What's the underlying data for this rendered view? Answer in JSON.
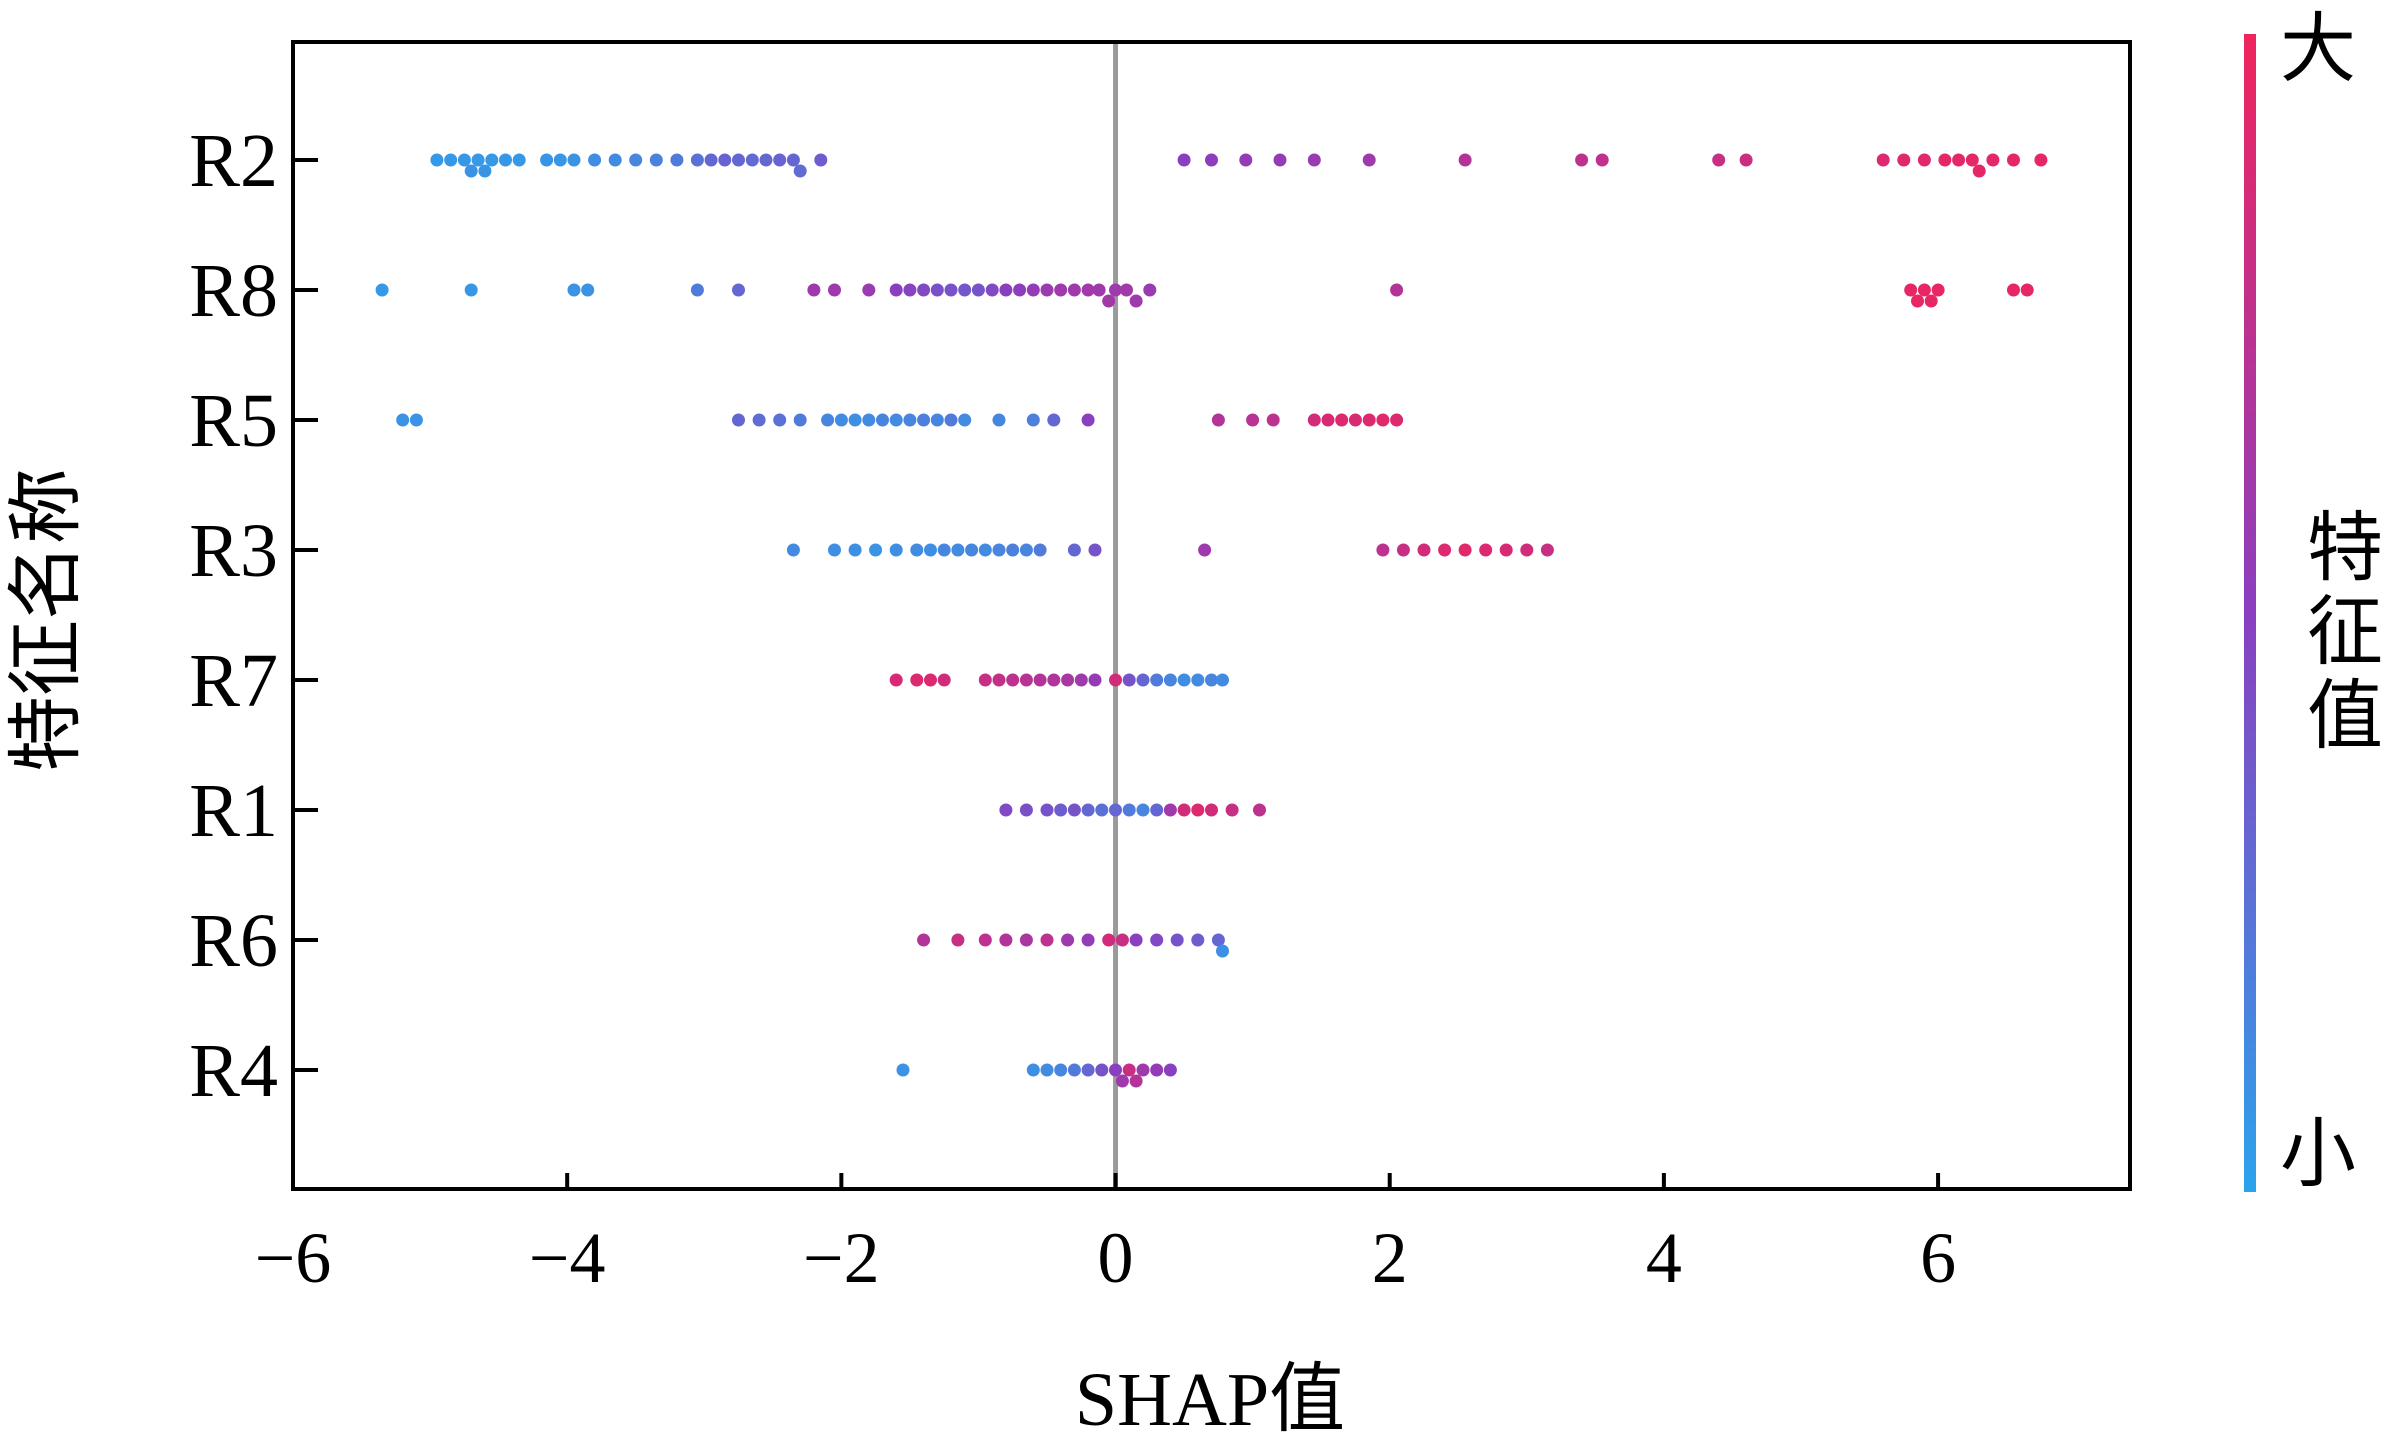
{
  "chart_data": {
    "type": "scatter",
    "subtype": "shap-beeswarm",
    "title": "",
    "xlabel": "SHAP值",
    "ylabel": "特征名称",
    "xlim": [
      -6,
      7.4
    ],
    "xticks": [
      -6,
      -4,
      -2,
      0,
      2,
      4,
      6
    ],
    "xtick_labels": [
      "−6",
      "−4",
      "−2",
      "0",
      "2",
      "4",
      "6"
    ],
    "grid": false,
    "zero_line": true,
    "colorbar": {
      "label": "特征值",
      "high_label": "大",
      "low_label": "小",
      "low_color": "#2ba3ec",
      "mid_color": "#8a3fc0",
      "high_color": "#f0245c"
    },
    "features": [
      {
        "name": "R2",
        "points": [
          {
            "x": -4.95,
            "v": 0.05
          },
          {
            "x": -4.85,
            "v": 0.05
          },
          {
            "x": -4.75,
            "v": 0.06
          },
          {
            "x": -4.7,
            "v": 0.08
          },
          {
            "x": -4.65,
            "v": 0.05
          },
          {
            "x": -4.6,
            "v": 0.07
          },
          {
            "x": -4.55,
            "v": 0.05
          },
          {
            "x": -4.45,
            "v": 0.06
          },
          {
            "x": -4.35,
            "v": 0.05
          },
          {
            "x": -4.15,
            "v": 0.07
          },
          {
            "x": -4.05,
            "v": 0.06
          },
          {
            "x": -3.95,
            "v": 0.08
          },
          {
            "x": -3.8,
            "v": 0.1
          },
          {
            "x": -3.65,
            "v": 0.12
          },
          {
            "x": -3.5,
            "v": 0.14
          },
          {
            "x": -3.35,
            "v": 0.16
          },
          {
            "x": -3.2,
            "v": 0.2
          },
          {
            "x": -3.05,
            "v": 0.25
          },
          {
            "x": -2.95,
            "v": 0.3
          },
          {
            "x": -2.85,
            "v": 0.32
          },
          {
            "x": -2.75,
            "v": 0.3
          },
          {
            "x": -2.65,
            "v": 0.28
          },
          {
            "x": -2.55,
            "v": 0.3
          },
          {
            "x": -2.45,
            "v": 0.32
          },
          {
            "x": -2.35,
            "v": 0.3
          },
          {
            "x": -2.3,
            "v": 0.28
          },
          {
            "x": -2.15,
            "v": 0.35
          },
          {
            "x": 0.5,
            "v": 0.5
          },
          {
            "x": 0.7,
            "v": 0.52
          },
          {
            "x": 0.95,
            "v": 0.55
          },
          {
            "x": 1.2,
            "v": 0.55
          },
          {
            "x": 1.45,
            "v": 0.58
          },
          {
            "x": 1.85,
            "v": 0.6
          },
          {
            "x": 2.55,
            "v": 0.7
          },
          {
            "x": 3.4,
            "v": 0.75
          },
          {
            "x": 3.55,
            "v": 0.76
          },
          {
            "x": 4.4,
            "v": 0.8
          },
          {
            "x": 4.6,
            "v": 0.82
          },
          {
            "x": 5.6,
            "v": 0.9
          },
          {
            "x": 5.75,
            "v": 0.92
          },
          {
            "x": 5.9,
            "v": 0.92
          },
          {
            "x": 6.05,
            "v": 0.94
          },
          {
            "x": 6.15,
            "v": 0.93
          },
          {
            "x": 6.25,
            "v": 0.95
          },
          {
            "x": 6.3,
            "v": 0.94
          },
          {
            "x": 6.4,
            "v": 0.93
          },
          {
            "x": 6.55,
            "v": 0.95
          },
          {
            "x": 6.75,
            "v": 0.95
          }
        ]
      },
      {
        "name": "R8",
        "points": [
          {
            "x": -5.35,
            "v": 0.05
          },
          {
            "x": -4.7,
            "v": 0.06
          },
          {
            "x": -3.95,
            "v": 0.08
          },
          {
            "x": -3.85,
            "v": 0.08
          },
          {
            "x": -3.05,
            "v": 0.2
          },
          {
            "x": -2.75,
            "v": 0.3
          },
          {
            "x": -2.2,
            "v": 0.6
          },
          {
            "x": -2.05,
            "v": 0.6
          },
          {
            "x": -1.8,
            "v": 0.58
          },
          {
            "x": -1.6,
            "v": 0.5
          },
          {
            "x": -1.5,
            "v": 0.48
          },
          {
            "x": -1.4,
            "v": 0.45
          },
          {
            "x": -1.3,
            "v": 0.42
          },
          {
            "x": -1.2,
            "v": 0.4
          },
          {
            "x": -1.1,
            "v": 0.38
          },
          {
            "x": -1.0,
            "v": 0.4
          },
          {
            "x": -0.9,
            "v": 0.45
          },
          {
            "x": -0.8,
            "v": 0.5
          },
          {
            "x": -0.7,
            "v": 0.52
          },
          {
            "x": -0.6,
            "v": 0.55
          },
          {
            "x": -0.5,
            "v": 0.58
          },
          {
            "x": -0.4,
            "v": 0.6
          },
          {
            "x": -0.3,
            "v": 0.6
          },
          {
            "x": -0.2,
            "v": 0.62
          },
          {
            "x": -0.12,
            "v": 0.6
          },
          {
            "x": -0.05,
            "v": 0.62
          },
          {
            "x": 0.0,
            "v": 0.6
          },
          {
            "x": 0.08,
            "v": 0.62
          },
          {
            "x": 0.15,
            "v": 0.6
          },
          {
            "x": 0.25,
            "v": 0.58
          },
          {
            "x": 2.05,
            "v": 0.7
          },
          {
            "x": 5.8,
            "v": 0.95
          },
          {
            "x": 5.85,
            "v": 0.96
          },
          {
            "x": 5.9,
            "v": 0.96
          },
          {
            "x": 5.95,
            "v": 0.95
          },
          {
            "x": 6.0,
            "v": 0.96
          },
          {
            "x": 6.55,
            "v": 0.96
          },
          {
            "x": 6.65,
            "v": 0.95
          }
        ]
      },
      {
        "name": "R5",
        "points": [
          {
            "x": -5.2,
            "v": 0.08
          },
          {
            "x": -5.1,
            "v": 0.08
          },
          {
            "x": -2.75,
            "v": 0.3
          },
          {
            "x": -2.6,
            "v": 0.28
          },
          {
            "x": -2.45,
            "v": 0.25
          },
          {
            "x": -2.3,
            "v": 0.2
          },
          {
            "x": -2.1,
            "v": 0.15
          },
          {
            "x": -2.0,
            "v": 0.12
          },
          {
            "x": -1.9,
            "v": 0.1
          },
          {
            "x": -1.8,
            "v": 0.12
          },
          {
            "x": -1.7,
            "v": 0.15
          },
          {
            "x": -1.6,
            "v": 0.12
          },
          {
            "x": -1.5,
            "v": 0.15
          },
          {
            "x": -1.4,
            "v": 0.18
          },
          {
            "x": -1.3,
            "v": 0.15
          },
          {
            "x": -1.2,
            "v": 0.2
          },
          {
            "x": -1.1,
            "v": 0.12
          },
          {
            "x": -0.85,
            "v": 0.15
          },
          {
            "x": -0.6,
            "v": 0.18
          },
          {
            "x": -0.45,
            "v": 0.3
          },
          {
            "x": -0.2,
            "v": 0.5
          },
          {
            "x": 0.75,
            "v": 0.7
          },
          {
            "x": 1.0,
            "v": 0.72
          },
          {
            "x": 1.15,
            "v": 0.75
          },
          {
            "x": 1.45,
            "v": 0.85
          },
          {
            "x": 1.55,
            "v": 0.88
          },
          {
            "x": 1.65,
            "v": 0.9
          },
          {
            "x": 1.75,
            "v": 0.88
          },
          {
            "x": 1.85,
            "v": 0.9
          },
          {
            "x": 1.95,
            "v": 0.92
          },
          {
            "x": 2.05,
            "v": 0.9
          }
        ]
      },
      {
        "name": "R3",
        "points": [
          {
            "x": -2.35,
            "v": 0.12
          },
          {
            "x": -2.05,
            "v": 0.1
          },
          {
            "x": -1.9,
            "v": 0.1
          },
          {
            "x": -1.75,
            "v": 0.08
          },
          {
            "x": -1.6,
            "v": 0.1
          },
          {
            "x": -1.45,
            "v": 0.12
          },
          {
            "x": -1.35,
            "v": 0.1
          },
          {
            "x": -1.25,
            "v": 0.15
          },
          {
            "x": -1.15,
            "v": 0.12
          },
          {
            "x": -1.05,
            "v": 0.15
          },
          {
            "x": -0.95,
            "v": 0.12
          },
          {
            "x": -0.85,
            "v": 0.15
          },
          {
            "x": -0.75,
            "v": 0.18
          },
          {
            "x": -0.65,
            "v": 0.15
          },
          {
            "x": -0.55,
            "v": 0.2
          },
          {
            "x": -0.3,
            "v": 0.3
          },
          {
            "x": -0.15,
            "v": 0.4
          },
          {
            "x": 0.65,
            "v": 0.6
          },
          {
            "x": 1.95,
            "v": 0.75
          },
          {
            "x": 2.1,
            "v": 0.8
          },
          {
            "x": 2.25,
            "v": 0.85
          },
          {
            "x": 2.4,
            "v": 0.9
          },
          {
            "x": 2.55,
            "v": 0.92
          },
          {
            "x": 2.7,
            "v": 0.9
          },
          {
            "x": 2.85,
            "v": 0.88
          },
          {
            "x": 3.0,
            "v": 0.85
          },
          {
            "x": 3.15,
            "v": 0.8
          }
        ]
      },
      {
        "name": "R7",
        "points": [
          {
            "x": -1.6,
            "v": 0.88
          },
          {
            "x": -1.45,
            "v": 0.9
          },
          {
            "x": -1.35,
            "v": 0.9
          },
          {
            "x": -1.25,
            "v": 0.85
          },
          {
            "x": -0.95,
            "v": 0.8
          },
          {
            "x": -0.85,
            "v": 0.78
          },
          {
            "x": -0.75,
            "v": 0.75
          },
          {
            "x": -0.65,
            "v": 0.72
          },
          {
            "x": -0.55,
            "v": 0.7
          },
          {
            "x": -0.45,
            "v": 0.68
          },
          {
            "x": -0.35,
            "v": 0.65
          },
          {
            "x": -0.25,
            "v": 0.6
          },
          {
            "x": -0.15,
            "v": 0.55
          },
          {
            "x": 0.0,
            "v": 0.85
          },
          {
            "x": 0.1,
            "v": 0.4
          },
          {
            "x": 0.2,
            "v": 0.3
          },
          {
            "x": 0.3,
            "v": 0.2
          },
          {
            "x": 0.4,
            "v": 0.15
          },
          {
            "x": 0.5,
            "v": 0.1
          },
          {
            "x": 0.6,
            "v": 0.12
          },
          {
            "x": 0.7,
            "v": 0.15
          },
          {
            "x": 0.78,
            "v": 0.12
          }
        ]
      },
      {
        "name": "R1",
        "points": [
          {
            "x": -0.8,
            "v": 0.45
          },
          {
            "x": -0.65,
            "v": 0.42
          },
          {
            "x": -0.5,
            "v": 0.4
          },
          {
            "x": -0.4,
            "v": 0.35
          },
          {
            "x": -0.3,
            "v": 0.4
          },
          {
            "x": -0.2,
            "v": 0.3
          },
          {
            "x": -0.1,
            "v": 0.25
          },
          {
            "x": 0.0,
            "v": 0.3
          },
          {
            "x": 0.1,
            "v": 0.2
          },
          {
            "x": 0.2,
            "v": 0.15
          },
          {
            "x": 0.3,
            "v": 0.3
          },
          {
            "x": 0.4,
            "v": 0.6
          },
          {
            "x": 0.5,
            "v": 0.85
          },
          {
            "x": 0.6,
            "v": 0.9
          },
          {
            "x": 0.7,
            "v": 0.85
          },
          {
            "x": 0.85,
            "v": 0.8
          },
          {
            "x": 1.05,
            "v": 0.75
          }
        ]
      },
      {
        "name": "R6",
        "points": [
          {
            "x": -1.4,
            "v": 0.7
          },
          {
            "x": -1.15,
            "v": 0.8
          },
          {
            "x": -0.95,
            "v": 0.75
          },
          {
            "x": -0.8,
            "v": 0.7
          },
          {
            "x": -0.65,
            "v": 0.65
          },
          {
            "x": -0.5,
            "v": 0.75
          },
          {
            "x": -0.35,
            "v": 0.6
          },
          {
            "x": -0.2,
            "v": 0.55
          },
          {
            "x": -0.05,
            "v": 0.85
          },
          {
            "x": 0.05,
            "v": 0.8
          },
          {
            "x": 0.15,
            "v": 0.5
          },
          {
            "x": 0.3,
            "v": 0.45
          },
          {
            "x": 0.45,
            "v": 0.4
          },
          {
            "x": 0.6,
            "v": 0.35
          },
          {
            "x": 0.75,
            "v": 0.3
          },
          {
            "x": 0.78,
            "v": 0.1
          }
        ]
      },
      {
        "name": "R4",
        "points": [
          {
            "x": -1.55,
            "v": 0.08
          },
          {
            "x": -0.6,
            "v": 0.1
          },
          {
            "x": -0.5,
            "v": 0.12
          },
          {
            "x": -0.4,
            "v": 0.15
          },
          {
            "x": -0.3,
            "v": 0.2
          },
          {
            "x": -0.2,
            "v": 0.3
          },
          {
            "x": -0.1,
            "v": 0.4
          },
          {
            "x": 0.0,
            "v": 0.5
          },
          {
            "x": 0.05,
            "v": 0.6
          },
          {
            "x": 0.1,
            "v": 0.8
          },
          {
            "x": 0.15,
            "v": 0.7
          },
          {
            "x": 0.2,
            "v": 0.6
          },
          {
            "x": 0.3,
            "v": 0.55
          },
          {
            "x": 0.4,
            "v": 0.5
          }
        ]
      }
    ]
  }
}
